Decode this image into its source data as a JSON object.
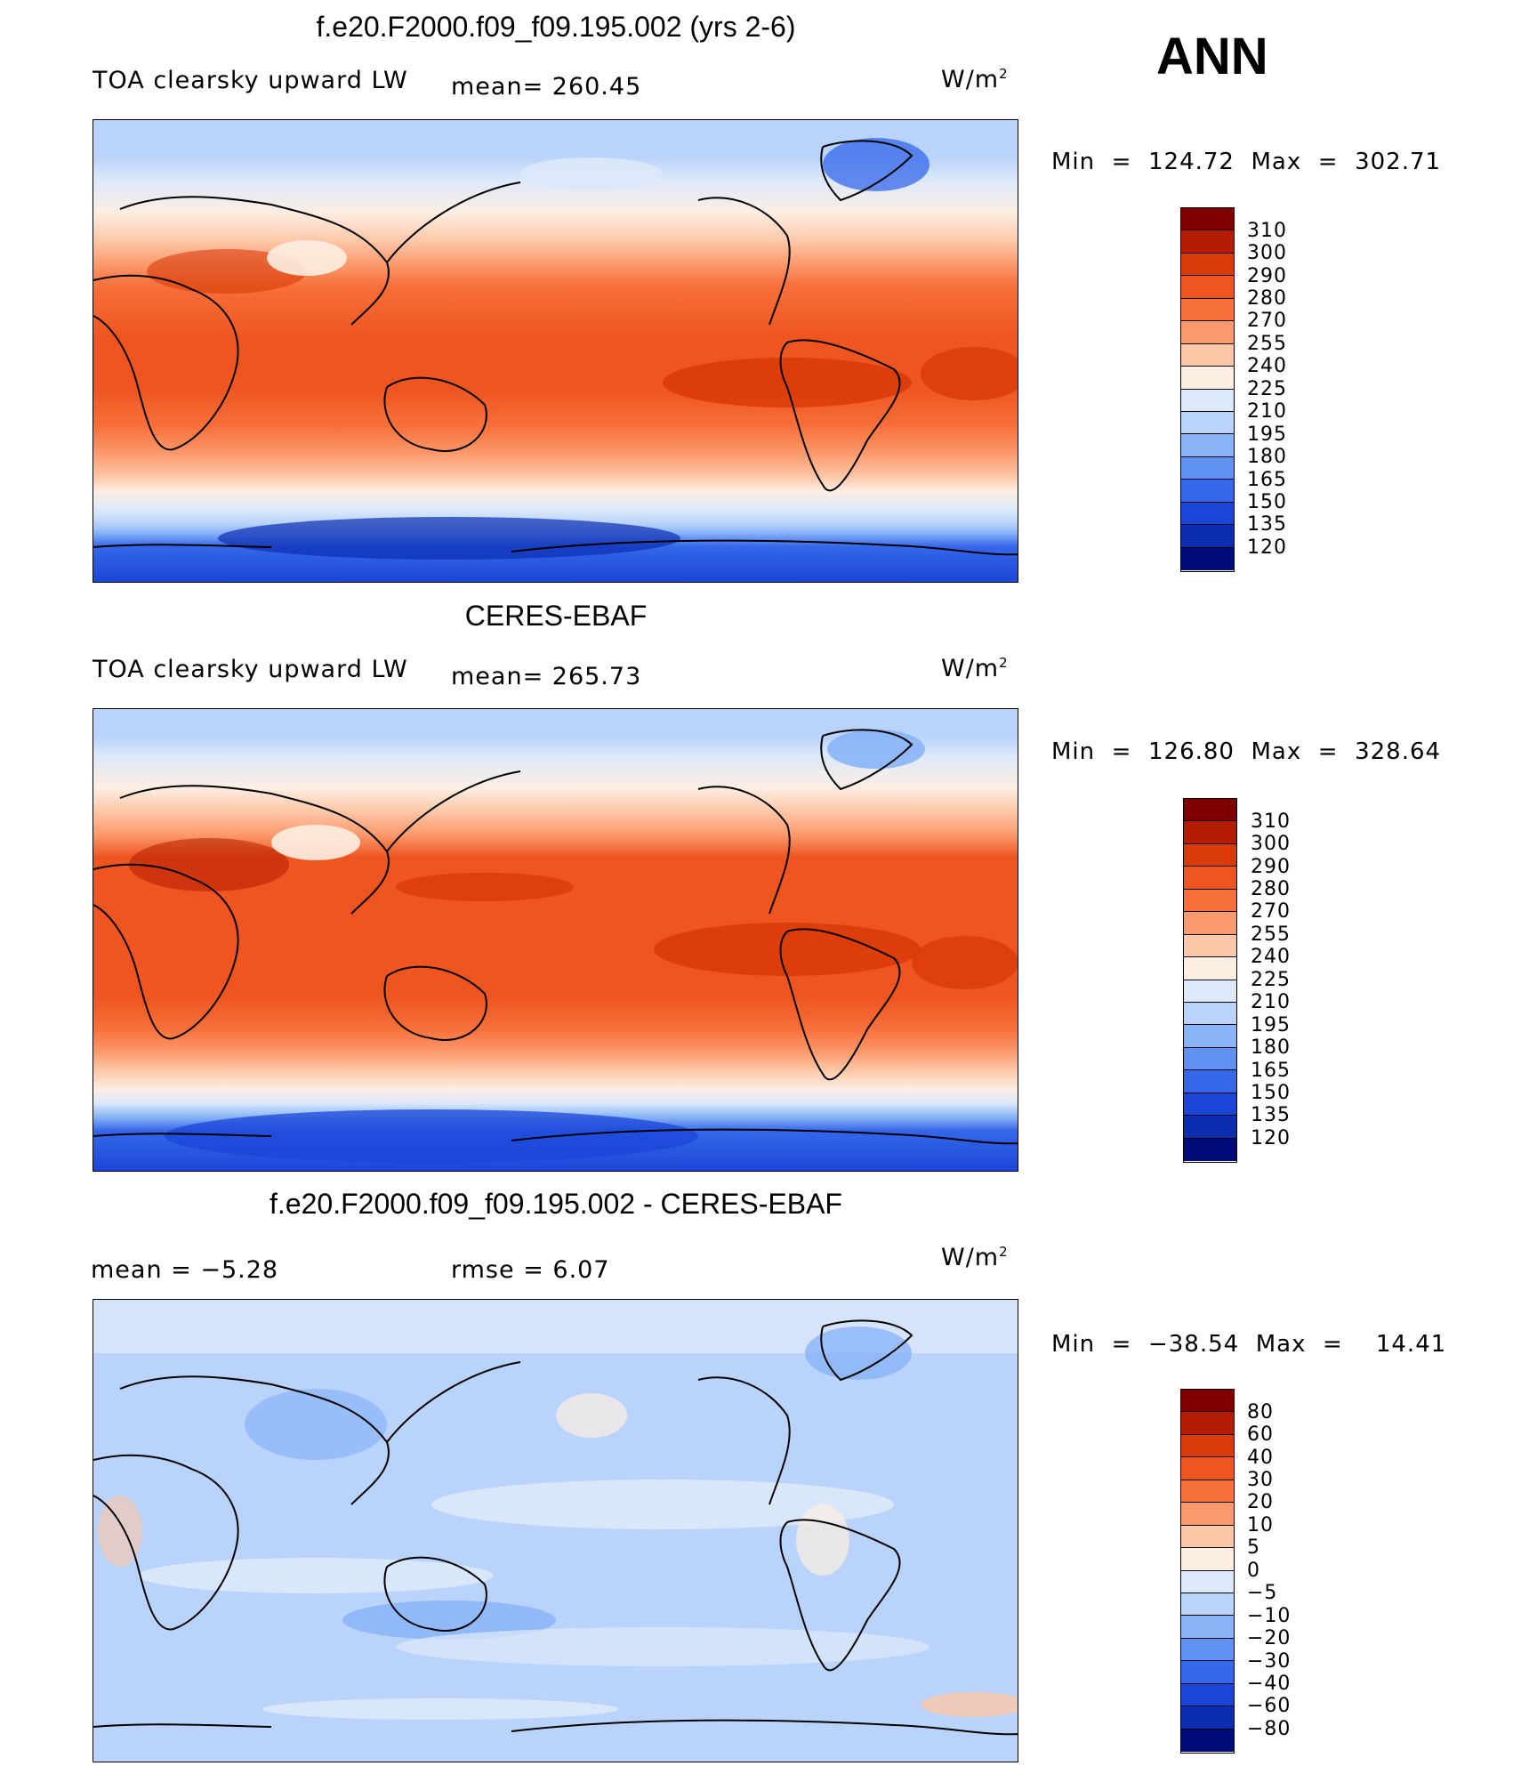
{
  "season": "ANN",
  "panels": [
    {
      "title": "f.e20.F2000.f09_f09.195.002 (yrs 2-6)",
      "left_text": "TOA clearsky upward LW",
      "mid_text": "mean=  260.45",
      "units": "W/m",
      "units_sup": "2",
      "minmax": "Min  =  124.72  Max  =  302.71",
      "scale": "abs"
    },
    {
      "title": "CERES-EBAF",
      "left_text": "TOA clearsky upward LW",
      "mid_text": "mean=  265.73",
      "units": "W/m",
      "units_sup": "2",
      "minmax": "Min  =  126.80  Max  =  328.64",
      "scale": "abs"
    },
    {
      "title": "f.e20.F2000.f09_f09.195.002 - CERES-EBAF",
      "left_text": "mean  =    −5.28",
      "mid_text": "rmse  =     6.07",
      "units": "W/m",
      "units_sup": "2",
      "minmax": "Min  =  −38.54  Max  =    14.41",
      "scale": "diff"
    }
  ],
  "colorbars": {
    "abs": {
      "labels": [
        "310",
        "300",
        "290",
        "280",
        "270",
        "255",
        "240",
        "225",
        "210",
        "195",
        "180",
        "165",
        "150",
        "135",
        "120"
      ],
      "colors": [
        "#7f0000",
        "#b51b00",
        "#d93a08",
        "#ee5520",
        "#f76f3a",
        "#fb9a6e",
        "#fdc8a8",
        "#fdeee2",
        "#dce9fa",
        "#b9d3fa",
        "#8ab4f8",
        "#5f91f2",
        "#3567ea",
        "#1a45d8",
        "#0b2eb0",
        "#000c7a"
      ]
    },
    "diff": {
      "labels": [
        "80",
        "60",
        "40",
        "30",
        "20",
        "10",
        "5",
        "0",
        "−5",
        "−10",
        "−20",
        "−30",
        "−40",
        "−60",
        "−80"
      ],
      "colors": [
        "#7f0000",
        "#b51b00",
        "#d93a08",
        "#ee5520",
        "#f76f3a",
        "#fb9a6e",
        "#fdc8a8",
        "#fdeee2",
        "#dce9fa",
        "#b9d3fa",
        "#8ab4f8",
        "#5f91f2",
        "#3567ea",
        "#1a45d8",
        "#0b2eb0",
        "#000c7a"
      ]
    }
  }
}
